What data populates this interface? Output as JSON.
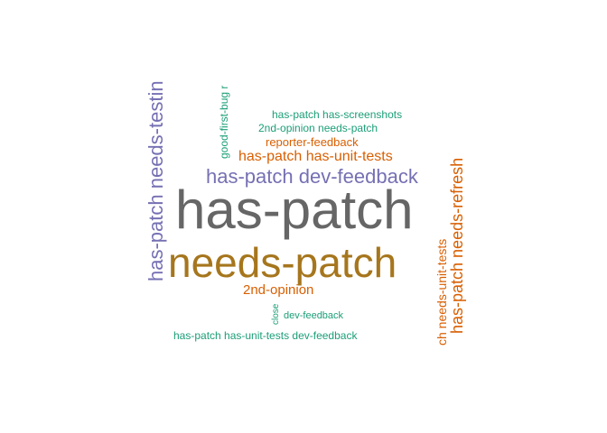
{
  "words": {
    "has_patch": "has-patch",
    "needs_patch": "needs-patch",
    "has_patch_dev_feedback": "has-patch dev-feedback",
    "has_patch_has_unit_tests": "has-patch has-unit-tests",
    "reporter_feedback": "reporter-feedback",
    "second_opinion_needs_patch": "2nd-opinion needs-patch",
    "has_patch_has_screenshots": "has-patch has-screenshots",
    "second_opinion": "2nd-opinion",
    "dev_feedback": "dev-feedback",
    "has_patch_has_unit_tests_dev_feedback": "has-patch has-unit-tests dev-feedback",
    "has_patch_needs_testin": "has-patch needs-testin",
    "good_first_bug": "good-first-bug r",
    "has_patch_needs_refresh": "has-patch needs-refresh",
    "ch_needs_unit_tests": "ch needs-unit-tests",
    "close": "close"
  },
  "colors": {
    "gray": "#666666",
    "olive": "#a6761d",
    "purple": "#7570b3",
    "orange": "#d95f02",
    "teal": "#1b9e77"
  }
}
